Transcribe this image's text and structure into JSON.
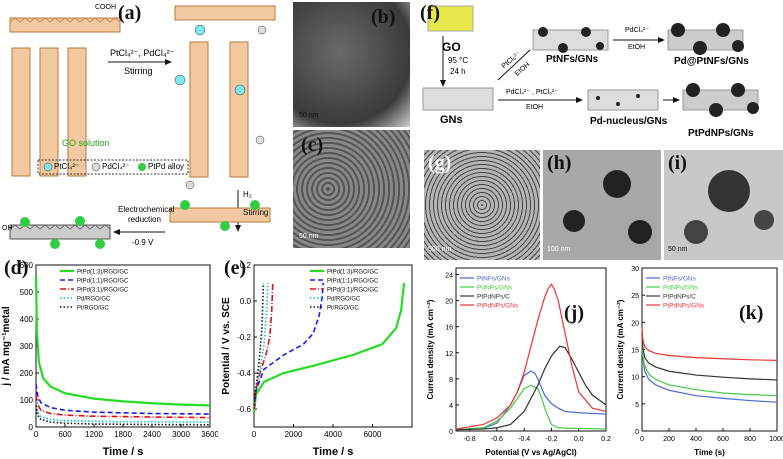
{
  "panel_labels": {
    "a": "(a)",
    "b": "(b)",
    "c": "(c)",
    "d": "(d)",
    "e": "(e)",
    "f": "(f)",
    "g": "(g)",
    "h": "(h)",
    "i": "(i)",
    "j": "(j)",
    "k": "(k)"
  },
  "panel_a": {
    "step1": "PtCl₄²⁻, PdCl₄²⁻",
    "step1_action": "Stirring",
    "step2": "H₂",
    "step2_action": "Stirring",
    "step3_line1": "Electrochemical",
    "step3_line2": "reduction",
    "step3_line3": "-0.9 V",
    "go_solution": "GO solution",
    "legend": [
      "PtCl₄²⁻",
      "PdCl₄²⁻",
      "PtPd alloy"
    ],
    "groups": {
      "cooh": "COOH",
      "oh": "OH"
    }
  },
  "panel_b": {
    "scale": "50 nm"
  },
  "panel_c": {
    "scale": "50 nm"
  },
  "panel_f": {
    "go": "GO",
    "gns": "GNs",
    "cond1": "95 °C",
    "cond2": "24 h",
    "reagent_pt": "PtCl₆²⁻",
    "solvent": "EtOH",
    "reagent_pd": "PdCl₄²⁻",
    "reagent_mix": "PdCl₄²⁻ , PtCl₆²⁻",
    "ptnfs": "PtNFs/GNs",
    "pd_ptnfs": "Pd@PtNFs/GNs",
    "pd_nucleus": "Pd-nucleus/GNs",
    "ptpdnps": "PtPdNPs/GNs"
  },
  "panel_g": {
    "scale": "500 nm"
  },
  "panel_h": {
    "scale": "100 nm"
  },
  "panel_i": {
    "scale": "50 nm"
  },
  "chart_data": [
    {
      "id": "d",
      "type": "line",
      "xlabel": "Time / s",
      "ylabel": "j / mA mg⁻¹metal",
      "xlim": [
        0,
        3600
      ],
      "ylim": [
        0,
        600
      ],
      "xticks": [
        0,
        600,
        1200,
        1800,
        2400,
        3000,
        3600
      ],
      "yticks": [
        0,
        100,
        200,
        300,
        400,
        500,
        600
      ],
      "series": [
        {
          "name": "PtPd(1:3)/RGO/GC",
          "color": "#22dd22",
          "dash": "",
          "width": 2.2,
          "x": [
            0,
            20,
            60,
            150,
            300,
            600,
            1200,
            1800,
            2400,
            3000,
            3600
          ],
          "y": [
            560,
            350,
            240,
            180,
            150,
            125,
            105,
            95,
            88,
            83,
            80
          ]
        },
        {
          "name": "PtPd(1:1)/RGO/GC",
          "color": "#1a1aff",
          "dash": "5,3",
          "width": 1.6,
          "x": [
            0,
            30,
            100,
            300,
            600,
            1200,
            2400,
            3600
          ],
          "y": [
            160,
            120,
            90,
            72,
            62,
            55,
            50,
            48
          ]
        },
        {
          "name": "PtPd(3:1)/RGO/GC",
          "color": "#e01010",
          "dash": "6,2,1,2",
          "width": 1.6,
          "x": [
            0,
            30,
            100,
            300,
            600,
            1200,
            2400,
            3600
          ],
          "y": [
            120,
            85,
            62,
            50,
            44,
            40,
            37,
            35
          ]
        },
        {
          "name": "Pd/RGO/GC",
          "color": "#00cccc",
          "dash": "1.5,2",
          "width": 1.6,
          "x": [
            0,
            30,
            100,
            300,
            600,
            1200,
            2400,
            3600
          ],
          "y": [
            90,
            55,
            38,
            28,
            24,
            21,
            19,
            18
          ]
        },
        {
          "name": "Pt/RGO/GC",
          "color": "#111111",
          "dash": "1.5,2",
          "width": 1.6,
          "x": [
            0,
            30,
            100,
            300,
            600,
            1200,
            2400,
            3600
          ],
          "y": [
            80,
            45,
            28,
            18,
            14,
            11,
            9,
            8
          ]
        }
      ]
    },
    {
      "id": "e",
      "type": "line",
      "xlabel": "Time / s",
      "ylabel": "Potential / V vs. SCE",
      "xlim": [
        0,
        8000
      ],
      "ylim": [
        -0.7,
        0.2
      ],
      "xticks": [
        0,
        2000,
        4000,
        6000
      ],
      "yticks": [
        -0.6,
        -0.4,
        -0.2,
        0.0,
        0.2
      ],
      "series": [
        {
          "name": "PtPd(1:3)/RGO/GC",
          "color": "#22dd22",
          "dash": "",
          "width": 2.2,
          "x": [
            0,
            100,
            500,
            1500,
            3000,
            5000,
            6500,
            7200,
            7450,
            7550,
            7600
          ],
          "y": [
            -0.62,
            -0.52,
            -0.45,
            -0.4,
            -0.36,
            -0.3,
            -0.24,
            -0.15,
            -0.05,
            0.05,
            0.1
          ]
        },
        {
          "name": "PtPd(1:1)/RGO/GC",
          "color": "#1a1aff",
          "dash": "5,3",
          "width": 1.6,
          "x": [
            0,
            100,
            500,
            1500,
            2500,
            3000,
            3300,
            3450,
            3500
          ],
          "y": [
            -0.6,
            -0.5,
            -0.38,
            -0.3,
            -0.24,
            -0.18,
            -0.08,
            0.02,
            0.1
          ]
        },
        {
          "name": "PtPd(3:1)/RGO/GC",
          "color": "#e01010",
          "dash": "6,2,1,2",
          "width": 1.6,
          "x": [
            0,
            100,
            300,
            600,
            800,
            900,
            950
          ],
          "y": [
            -0.6,
            -0.5,
            -0.4,
            -0.3,
            -0.2,
            -0.05,
            0.1
          ]
        },
        {
          "name": "Pd/RGO/GC",
          "color": "#00cccc",
          "dash": "1.5,2",
          "width": 1.6,
          "x": [
            0,
            100,
            300,
            500,
            650,
            700
          ],
          "y": [
            -0.58,
            -0.48,
            -0.38,
            -0.25,
            -0.05,
            0.1
          ]
        },
        {
          "name": "Pt/RGO/GC",
          "color": "#111111",
          "dash": "1.5,2",
          "width": 1.6,
          "x": [
            0,
            100,
            250,
            400,
            450,
            480
          ],
          "y": [
            -0.58,
            -0.48,
            -0.35,
            -0.15,
            0.0,
            0.1
          ]
        }
      ]
    },
    {
      "id": "j",
      "type": "line",
      "xlabel": "Potential (V vs Ag/AgCl)",
      "ylabel": "Current density (mA cm⁻²)",
      "xlim": [
        -0.9,
        0.2
      ],
      "ylim": [
        0,
        25
      ],
      "xticks": [
        -0.8,
        -0.6,
        -0.4,
        -0.2,
        0.0,
        0.2
      ],
      "yticks": [
        0,
        4,
        8,
        12,
        16,
        20,
        24
      ],
      "series": [
        {
          "name": "PtNFs/GNs",
          "color": "#4a6bd6",
          "x": [
            -0.9,
            -0.7,
            -0.6,
            -0.5,
            -0.45,
            -0.4,
            -0.35,
            -0.32,
            -0.3,
            -0.28,
            -0.25,
            -0.2,
            -0.15,
            -0.1,
            0.0,
            0.2
          ],
          "y": [
            0.2,
            0.4,
            1.2,
            4,
            6,
            8.5,
            9.2,
            8.8,
            8,
            7,
            5.5,
            4.2,
            3.5,
            3,
            2.8,
            2.6
          ]
        },
        {
          "name": "PdNPs/GNs",
          "color": "#44cc44",
          "x": [
            -0.9,
            -0.7,
            -0.6,
            -0.5,
            -0.45,
            -0.4,
            -0.35,
            -0.3,
            -0.27,
            -0.25,
            -0.22,
            -0.2,
            -0.15,
            -0.05,
            0.0,
            0.2
          ],
          "y": [
            0.2,
            0.5,
            1.5,
            3.5,
            5,
            6.5,
            7,
            6.5,
            5,
            3.5,
            2,
            1,
            0.5,
            0.4,
            0.4,
            0.3
          ]
        },
        {
          "name": "PtPdNPs/C",
          "color": "#333333",
          "x": [
            -0.9,
            -0.7,
            -0.6,
            -0.5,
            -0.4,
            -0.3,
            -0.25,
            -0.2,
            -0.16,
            -0.14,
            -0.1,
            -0.05,
            0.0,
            0.05,
            0.1,
            0.2
          ],
          "y": [
            0.2,
            0.3,
            0.5,
            1,
            3,
            7,
            9.5,
            11.5,
            12.5,
            13,
            12.8,
            11,
            9,
            7,
            5.5,
            4
          ]
        },
        {
          "name": "PtPdNPs/GNs",
          "color": "#ee3333",
          "x": [
            -0.9,
            -0.7,
            -0.6,
            -0.5,
            -0.45,
            -0.4,
            -0.35,
            -0.3,
            -0.25,
            -0.22,
            -0.2,
            -0.18,
            -0.15,
            -0.1,
            -0.05,
            0.0,
            0.1,
            0.2
          ],
          "y": [
            0.3,
            1,
            2,
            4,
            6,
            9,
            13,
            17,
            20.5,
            22,
            22.5,
            21.8,
            20,
            15,
            10,
            6,
            3.5,
            3
          ]
        }
      ]
    },
    {
      "id": "k",
      "type": "line",
      "xlabel": "Time (s)",
      "ylabel": "Current density (mA cm⁻²)",
      "xlim": [
        0,
        1000
      ],
      "ylim": [
        0,
        30
      ],
      "xticks": [
        0,
        200,
        400,
        600,
        800,
        1000
      ],
      "yticks": [
        0,
        5,
        10,
        15,
        20,
        25,
        30
      ],
      "series": [
        {
          "name": "PtNFs/GNs",
          "color": "#4a6bd6",
          "x": [
            0,
            5,
            20,
            50,
            100,
            200,
            400,
            600,
            800,
            1000
          ],
          "y": [
            18,
            14,
            11,
            9.5,
            8.5,
            7.5,
            6.5,
            6,
            5.6,
            5.3
          ]
        },
        {
          "name": "PdNPs/GNs",
          "color": "#44cc44",
          "x": [
            0,
            5,
            20,
            50,
            100,
            200,
            400,
            600,
            800,
            1000
          ],
          "y": [
            17,
            14,
            12,
            10.5,
            9.5,
            8.5,
            7.6,
            7,
            6.7,
            6.5
          ]
        },
        {
          "name": "PtPdNPs/C",
          "color": "#333333",
          "x": [
            0,
            5,
            20,
            50,
            100,
            200,
            400,
            600,
            800,
            1000
          ],
          "y": [
            18,
            15.5,
            13.5,
            12.5,
            11.8,
            11,
            10.3,
            9.9,
            9.6,
            9.4
          ]
        },
        {
          "name": "PtPdNPs/GNs",
          "color": "#ee3333",
          "x": [
            0,
            5,
            20,
            50,
            100,
            200,
            400,
            600,
            800,
            1000
          ],
          "y": [
            19,
            17,
            15.5,
            14.8,
            14.3,
            13.9,
            13.5,
            13.3,
            13.1,
            13
          ]
        }
      ]
    }
  ]
}
